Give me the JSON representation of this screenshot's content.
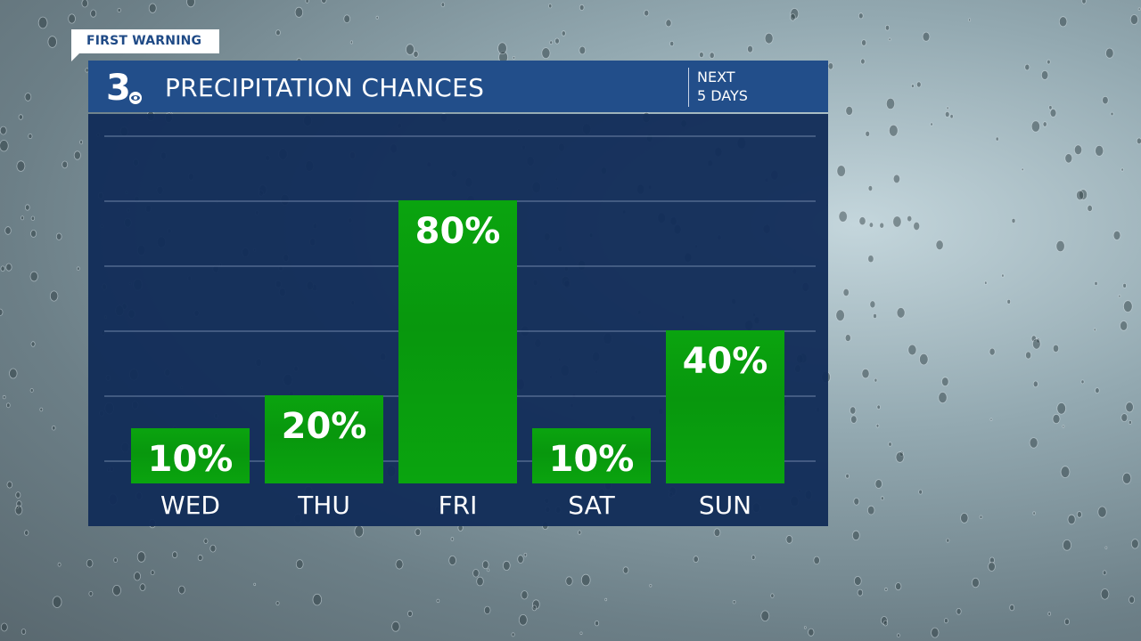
{
  "badge": "FIRST WARNING",
  "header": {
    "title": "PRECIPITATION CHANCES",
    "range_line1": "NEXT",
    "range_line2": "5 DAYS",
    "logo": "3"
  },
  "colors": {
    "header": "#224e8a",
    "chart_bg": "#122d58",
    "bar": "#0aa40f",
    "badge_text": "#1f4a86"
  },
  "chart_data": {
    "type": "bar",
    "title": "PRECIPITATION CHANCES",
    "categories": [
      "WED",
      "THU",
      "FRI",
      "SAT",
      "SUN"
    ],
    "values": [
      10,
      20,
      80,
      10,
      40
    ],
    "labels": [
      "10%",
      "20%",
      "80%",
      "10%",
      "40%"
    ],
    "unit": "%",
    "ylim": [
      0,
      100
    ],
    "grid": true
  }
}
